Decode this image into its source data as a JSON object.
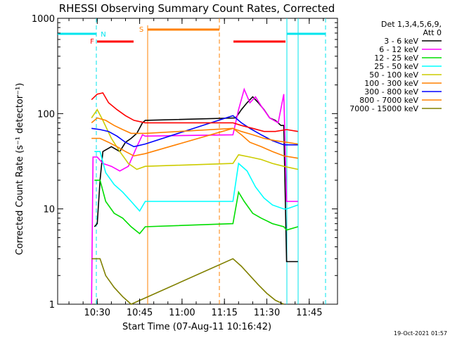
{
  "chart_data": {
    "type": "line",
    "title": "RHESSI Observing Summary Count Rates, Corrected",
    "xlabel": "Start Time (07-Aug-11 10:16:42)",
    "ylabel": "Corrected Count Rate (s⁻¹ detector⁻¹)",
    "yscale": "log",
    "ylim": [
      1,
      1000
    ],
    "xlim": [
      "10:16:42",
      "11:55:00"
    ],
    "x_ticks": [
      "10:30",
      "10:45",
      "11:00",
      "11:15",
      "11:30",
      "11:45"
    ],
    "y_ticks": [
      "1",
      "10",
      "100",
      "1000"
    ],
    "legend_title": "Det 1,3,4,5,6,9,\nAtt 0",
    "legend_position": "right",
    "flags": [
      {
        "label": "N",
        "color": "#00e5ee"
      },
      {
        "label": "F",
        "color": "#ff0000"
      },
      {
        "label": "S",
        "color": "#ff8000"
      }
    ],
    "timestamp": "19-Oct-2021 01:57",
    "series": [
      {
        "name": "3 - 6 keV",
        "color": "#000000",
        "points": [
          [
            "10:29",
            "6.5"
          ],
          [
            "10:30",
            "7"
          ],
          [
            "10:31",
            "20"
          ],
          [
            "10:32",
            "40"
          ],
          [
            "10:35",
            "45"
          ],
          [
            "10:38",
            "40"
          ],
          [
            "10:40",
            "50"
          ],
          [
            "10:42",
            "55"
          ],
          [
            "10:44",
            "62"
          ],
          [
            "10:46",
            "80"
          ],
          [
            "10:47",
            "85"
          ],
          [
            "11:19",
            "90"
          ],
          [
            "11:21",
            "110"
          ],
          [
            "11:23",
            "130"
          ],
          [
            "11:25",
            "150"
          ],
          [
            "11:27",
            "130"
          ],
          [
            "11:29",
            "110"
          ],
          [
            "11:31",
            "90"
          ],
          [
            "11:33",
            "85"
          ],
          [
            "11:35",
            "75"
          ],
          [
            "11:36",
            "75"
          ],
          [
            "11:37",
            "2.8"
          ],
          [
            "11:41",
            "2.8"
          ]
        ]
      },
      {
        "name": "6 - 12 keV",
        "color": "#ff00ff",
        "points": [
          [
            "10:28",
            "1"
          ],
          [
            "10:28.5",
            "35"
          ],
          [
            "10:30",
            "35"
          ],
          [
            "10:32",
            "30"
          ],
          [
            "10:35",
            "28"
          ],
          [
            "10:38",
            "25"
          ],
          [
            "10:41",
            "28"
          ],
          [
            "10:44",
            "45"
          ],
          [
            "10:46",
            "60"
          ],
          [
            "10:47",
            "58"
          ],
          [
            "11:18",
            "60"
          ],
          [
            "11:20",
            "110"
          ],
          [
            "11:22",
            "180"
          ],
          [
            "11:24",
            "130"
          ],
          [
            "11:26",
            "150"
          ],
          [
            "11:28",
            "120"
          ],
          [
            "11:31",
            "90"
          ],
          [
            "11:34",
            "80"
          ],
          [
            "11:36",
            "160"
          ],
          [
            "11:37",
            "12"
          ],
          [
            "11:41",
            "12"
          ]
        ]
      },
      {
        "name": "12 - 25 keV",
        "color": "#00dd00",
        "points": [
          [
            "10:29",
            "20"
          ],
          [
            "10:31",
            "20"
          ],
          [
            "10:33",
            "12"
          ],
          [
            "10:36",
            "9"
          ],
          [
            "10:39",
            "8"
          ],
          [
            "10:42",
            "6.5"
          ],
          [
            "10:45",
            "5.5"
          ],
          [
            "10:47",
            "6.5"
          ],
          [
            "11:18",
            "7"
          ],
          [
            "11:20",
            "15"
          ],
          [
            "11:22",
            "12"
          ],
          [
            "11:25",
            "9"
          ],
          [
            "11:28",
            "8"
          ],
          [
            "11:32",
            "7"
          ],
          [
            "11:36",
            "6.5"
          ],
          [
            "11:37",
            "6"
          ],
          [
            "11:41",
            "6.5"
          ]
        ]
      },
      {
        "name": "25 - 50 keV",
        "color": "#00ffff",
        "points": [
          [
            "10:29",
            "40"
          ],
          [
            "10:31",
            "40"
          ],
          [
            "10:33",
            "24"
          ],
          [
            "10:36",
            "18"
          ],
          [
            "10:39",
            "15"
          ],
          [
            "10:42",
            "12"
          ],
          [
            "10:45",
            "9.5"
          ],
          [
            "10:47",
            "12"
          ],
          [
            "11:18",
            "12"
          ],
          [
            "11:20",
            "30"
          ],
          [
            "11:23",
            "25"
          ],
          [
            "11:26",
            "17"
          ],
          [
            "11:29",
            "13"
          ],
          [
            "11:32",
            "11"
          ],
          [
            "11:36",
            "10"
          ],
          [
            "11:37",
            "10"
          ],
          [
            "11:41",
            "11"
          ]
        ]
      },
      {
        "name": "50 - 100 keV",
        "color": "#cccc00",
        "points": [
          [
            "10:28",
            "90"
          ],
          [
            "10:30",
            "110"
          ],
          [
            "10:32",
            "85"
          ],
          [
            "10:35",
            "55"
          ],
          [
            "10:38",
            "40"
          ],
          [
            "10:41",
            "30"
          ],
          [
            "10:44",
            "26"
          ],
          [
            "10:47",
            "28"
          ],
          [
            "11:18",
            "30"
          ],
          [
            "11:20",
            "37"
          ],
          [
            "11:24",
            "35"
          ],
          [
            "11:28",
            "33"
          ],
          [
            "11:32",
            "30"
          ],
          [
            "11:36",
            "28"
          ],
          [
            "11:41",
            "26"
          ]
        ]
      },
      {
        "name": "100 - 300 keV",
        "color": "#ff8000",
        "points": [
          [
            "10:28",
            "55"
          ],
          [
            "10:31",
            "55"
          ],
          [
            "10:34",
            "50"
          ],
          [
            "10:37",
            "45"
          ],
          [
            "10:40",
            "40"
          ],
          [
            "10:43",
            "36"
          ],
          [
            "10:47",
            "38"
          ],
          [
            "11:18",
            "70"
          ],
          [
            "11:21",
            "60"
          ],
          [
            "11:24",
            "50"
          ],
          [
            "11:28",
            "45"
          ],
          [
            "11:32",
            "40"
          ],
          [
            "11:36",
            "36"
          ],
          [
            "11:41",
            "34"
          ]
        ]
      },
      {
        "name": "300 - 800 keV",
        "color": "#0000ff",
        "points": [
          [
            "10:28",
            "70"
          ],
          [
            "10:31",
            "68"
          ],
          [
            "10:34",
            "65"
          ],
          [
            "10:37",
            "58"
          ],
          [
            "10:40",
            "50"
          ],
          [
            "10:43",
            "45"
          ],
          [
            "10:47",
            "48"
          ],
          [
            "11:18",
            "95"
          ],
          [
            "11:21",
            "80"
          ],
          [
            "11:24",
            "70"
          ],
          [
            "11:28",
            "60"
          ],
          [
            "11:32",
            "52"
          ],
          [
            "11:36",
            "47"
          ],
          [
            "11:41",
            "47"
          ]
        ]
      },
      {
        "name": "800 - 7000 keV",
        "color": "#ff8000",
        "points": [
          [
            "10:28",
            "80"
          ],
          [
            "10:30",
            "90"
          ],
          [
            "10:33",
            "85"
          ],
          [
            "10:36",
            "75"
          ],
          [
            "10:39",
            "68"
          ],
          [
            "10:42",
            "62"
          ],
          [
            "10:47",
            "62"
          ],
          [
            "11:18",
            "70"
          ],
          [
            "11:21",
            "65"
          ],
          [
            "11:25",
            "60"
          ],
          [
            "11:29",
            "55"
          ],
          [
            "11:33",
            "52"
          ],
          [
            "11:37",
            "50"
          ],
          [
            "11:41",
            "48"
          ]
        ]
      },
      {
        "name": "7000 - 15000 keV",
        "color": "#808000",
        "points": [
          [
            "10:28",
            "3"
          ],
          [
            "10:31",
            "3"
          ],
          [
            "10:33",
            "2"
          ],
          [
            "10:36",
            "1.5"
          ],
          [
            "10:39",
            "1.2"
          ],
          [
            "10:42",
            "1"
          ],
          [
            "11:18",
            "3"
          ],
          [
            "11:21",
            "2.5"
          ],
          [
            "11:24",
            "2"
          ],
          [
            "11:27",
            "1.6"
          ],
          [
            "11:30",
            "1.3"
          ],
          [
            "11:33",
            "1.1"
          ],
          [
            "11:36",
            "1"
          ]
        ]
      },
      {
        "name": "",
        "color": "#ff0000",
        "points": [
          [
            "10:28",
            "140"
          ],
          [
            "10:30",
            "160"
          ],
          [
            "10:32",
            "165"
          ],
          [
            "10:34",
            "130"
          ],
          [
            "10:37",
            "110"
          ],
          [
            "10:40",
            "95"
          ],
          [
            "10:43",
            "85"
          ],
          [
            "10:47",
            "80"
          ],
          [
            "11:18",
            "80"
          ],
          [
            "11:21",
            "75"
          ],
          [
            "11:25",
            "70"
          ],
          [
            "11:29",
            "65"
          ],
          [
            "11:33",
            "65"
          ],
          [
            "11:37",
            "68"
          ],
          [
            "11:41",
            "65"
          ]
        ]
      }
    ]
  }
}
